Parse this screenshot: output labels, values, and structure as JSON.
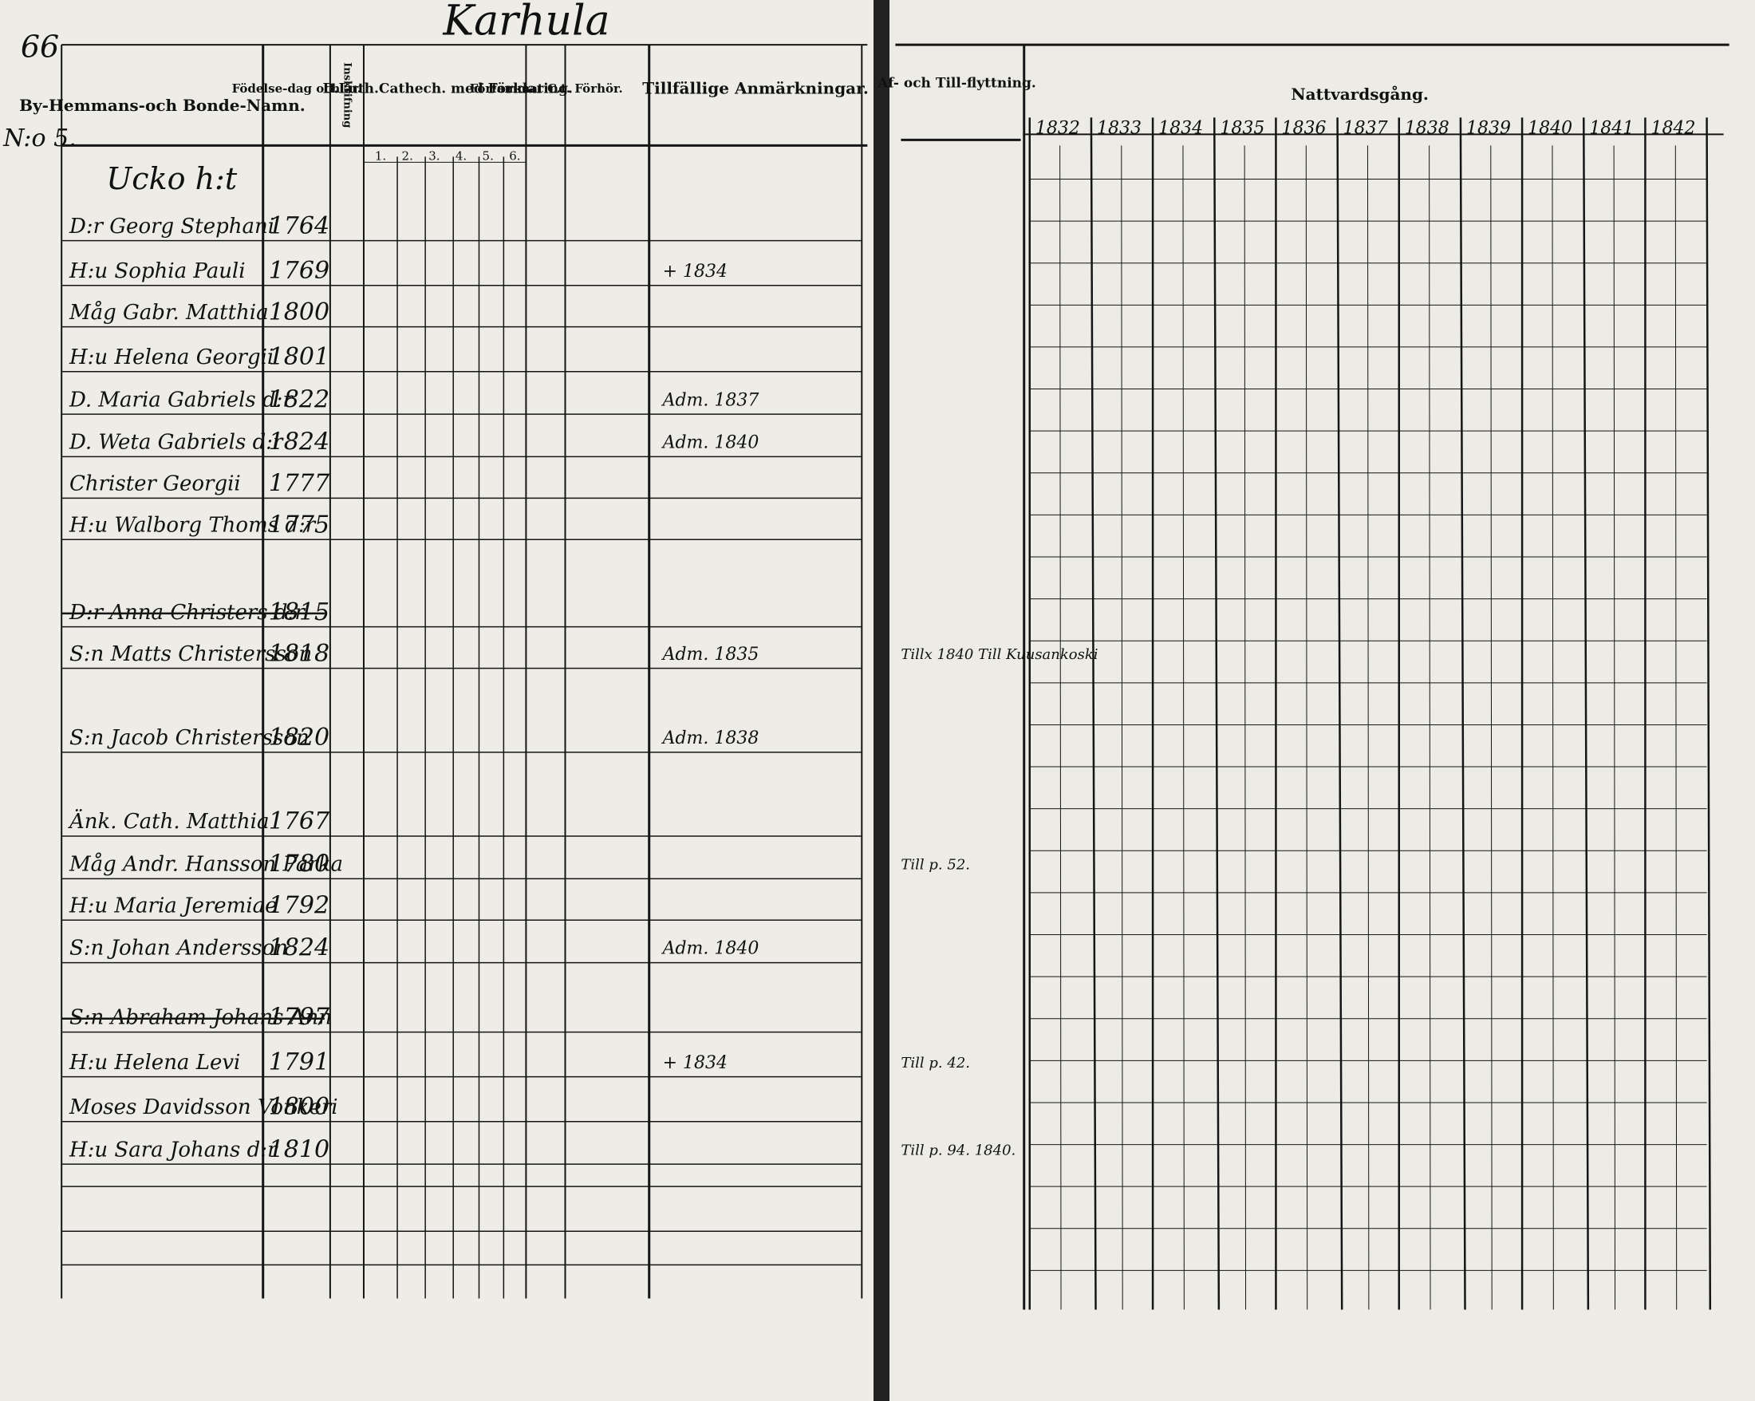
{
  "header": {
    "page_title": "Karhula",
    "page_number": "66",
    "section": "N:o 5."
  },
  "left_page": {
    "columns": [
      "By-Hemmans-och Bonde-Namn.",
      "Födelse-dag och år.",
      "Inskrifning",
      "D.Luth.Cathech. med Förklaring.",
      "Förfammat C.t. Förhör.",
      "Tillfällige Anmärkningar."
    ],
    "catechism_parts": [
      "1.",
      "2.",
      "3.",
      "4.",
      "5.",
      "6."
    ],
    "farm": "Ucko h:t",
    "rows": [
      {
        "name": "D:r Georg Stephani",
        "birth": "1764"
      },
      {
        "name": "H:u Sophia Pauli",
        "birth": "1769",
        "remark": "+ 1834"
      },
      {
        "name": "Måg Gabr. Matthia",
        "birth": "1800"
      },
      {
        "name": "H:u Helena Georgii",
        "birth": "1801"
      },
      {
        "name": "D. Maria Gabriels d:r",
        "birth": "1822",
        "remark": "Adm. 1837"
      },
      {
        "name": "D. Weta Gabriels d:r",
        "birth": "1824",
        "remark": "Adm. 1840"
      },
      {
        "name": "Christer Georgii",
        "birth": "1777"
      },
      {
        "name": "H:u Walborg Thoms d:r",
        "birth": "1775"
      },
      {
        "name": "D:r Anna Christers d:r",
        "birth": "1815"
      },
      {
        "name": "S:n Matts Christersson",
        "birth": "1818",
        "remark": "Adm. 1835"
      },
      {
        "name": "S:n Jacob Christersson",
        "birth": "1820",
        "remark": "Adm. 1838"
      },
      {
        "name": "Änk. Cath. Matthia",
        "birth": "1767"
      },
      {
        "name": "Måg Andr. Hansson Parka",
        "birth": "1780"
      },
      {
        "name": "H:u Maria Jeremiae",
        "birth": "1792"
      },
      {
        "name": "S:n Johan Andersson",
        "birth": "1824",
        "remark": "Adm. 1840"
      },
      {
        "name": "S:n Abraham Johans Ann",
        "birth": "1797"
      },
      {
        "name": "H:u Helena Levi",
        "birth": "1791",
        "remark": "+ 1834"
      },
      {
        "name": "Moses Davidsson Vonkeri",
        "birth": "1800"
      },
      {
        "name": "H:u Sara Johans d:r",
        "birth": "1810"
      }
    ]
  },
  "right_page": {
    "moving_header": "Af- och Till-flyttning.",
    "communion_header": "Nattvardsgång.",
    "years": [
      "1832",
      "1833",
      "1834",
      "1835",
      "1836",
      "1837",
      "1838",
      "1839",
      "1840",
      "1841",
      "1842"
    ],
    "moving_notes": [
      {
        "row": 9,
        "text": "Tillx 1840 Till Kuusankoski"
      },
      {
        "row": 12,
        "text": "Till p. 52."
      },
      {
        "row": 16,
        "text": "Till p. 42."
      },
      {
        "row": 18,
        "text": "Till p. 94. 1840."
      }
    ]
  }
}
